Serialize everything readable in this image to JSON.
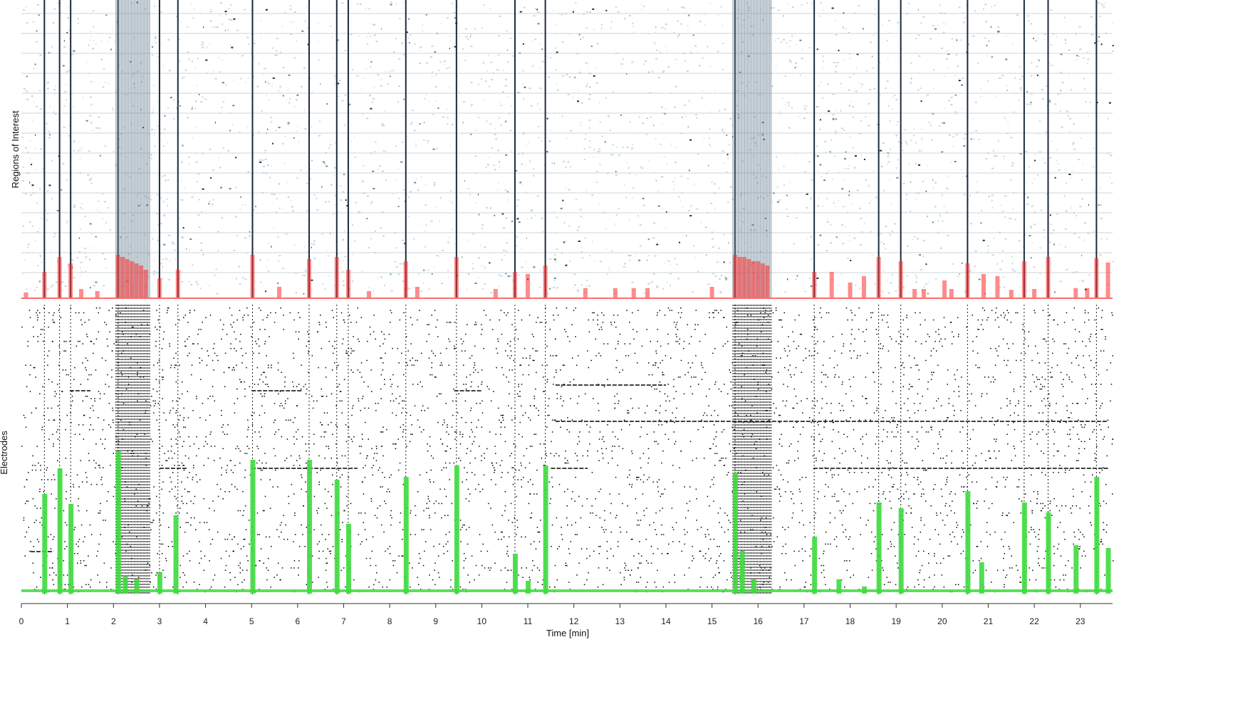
{
  "chart_data": [
    {
      "panel": "top",
      "type": "heatmap",
      "ylabel": "Regions of Interest",
      "xlim": [
        0,
        23.7
      ],
      "colormap": [
        "#ffffff",
        "#c9d6dd",
        "#6c8494",
        "#1c2b3a"
      ],
      "network_burst_times": [
        0.5,
        0.83,
        1.07,
        2.1,
        3.0,
        3.4,
        5.02,
        6.25,
        6.85,
        7.1,
        8.35,
        9.45,
        10.72,
        11.38,
        15.5,
        17.22,
        18.62,
        19.1,
        20.55,
        21.78,
        22.3,
        23.35
      ],
      "activity_bursts": {
        "color": "#ff2b2b",
        "times": [
          0.1,
          0.5,
          0.83,
          1.07,
          1.3,
          1.65,
          2.1,
          2.2,
          2.3,
          2.4,
          2.5,
          2.6,
          2.7,
          3.0,
          3.4,
          5.02,
          5.6,
          6.25,
          6.85,
          7.1,
          7.55,
          8.35,
          8.6,
          9.45,
          10.3,
          10.72,
          11.0,
          11.38,
          12.25,
          12.9,
          13.3,
          13.6,
          15.0,
          15.5,
          15.6,
          15.7,
          15.8,
          15.9,
          16.0,
          16.1,
          16.2,
          17.22,
          17.6,
          18.0,
          18.3,
          18.62,
          19.1,
          19.4,
          19.6,
          20.05,
          20.2,
          20.55,
          20.9,
          21.2,
          21.5,
          21.78,
          22.0,
          22.3,
          22.9,
          23.15,
          23.35,
          23.6
        ],
        "values": [
          0.12,
          0.6,
          0.95,
          0.8,
          0.2,
          0.15,
          1.0,
          0.95,
          0.9,
          0.85,
          0.8,
          0.75,
          0.65,
          0.45,
          0.65,
          1.0,
          0.25,
          0.9,
          0.95,
          0.65,
          0.15,
          0.85,
          0.25,
          0.95,
          0.2,
          0.6,
          0.55,
          0.75,
          0.22,
          0.22,
          0.22,
          0.22,
          0.25,
          1.0,
          0.95,
          0.95,
          0.9,
          0.85,
          0.85,
          0.8,
          0.75,
          0.6,
          0.6,
          0.35,
          0.5,
          0.95,
          0.85,
          0.2,
          0.2,
          0.4,
          0.2,
          0.8,
          0.55,
          0.5,
          0.18,
          0.85,
          0.2,
          0.95,
          0.22,
          0.22,
          0.92,
          0.82
        ]
      }
    },
    {
      "panel": "bottom",
      "type": "scatter",
      "ylabel": "Electrodes",
      "xlabel": "Time [min]",
      "xlim": [
        0,
        23.7
      ],
      "xticks": [
        0,
        1,
        2,
        3,
        4,
        5,
        6,
        7,
        8,
        9,
        10,
        11,
        12,
        13,
        14,
        15,
        16,
        17,
        18,
        19,
        20,
        21,
        22,
        23
      ],
      "spike_color": "#000000",
      "population_rate": {
        "color": "#3ddc3d",
        "baseline": 0.02,
        "peaks": [
          {
            "t": 0.5,
            "v": 0.7
          },
          {
            "t": 0.83,
            "v": 0.88
          },
          {
            "t": 1.07,
            "v": 0.63
          },
          {
            "t": 2.1,
            "v": 1.0
          },
          {
            "t": 2.25,
            "v": 0.12
          },
          {
            "t": 2.5,
            "v": 0.1
          },
          {
            "t": 3.0,
            "v": 0.15
          },
          {
            "t": 3.35,
            "v": 0.55
          },
          {
            "t": 5.02,
            "v": 0.94
          },
          {
            "t": 6.25,
            "v": 0.94
          },
          {
            "t": 6.85,
            "v": 0.8
          },
          {
            "t": 7.1,
            "v": 0.49
          },
          {
            "t": 8.35,
            "v": 0.82
          },
          {
            "t": 9.45,
            "v": 0.9
          },
          {
            "t": 10.72,
            "v": 0.28
          },
          {
            "t": 11.0,
            "v": 0.09
          },
          {
            "t": 11.38,
            "v": 0.9
          },
          {
            "t": 15.5,
            "v": 0.85
          },
          {
            "t": 15.65,
            "v": 0.3
          },
          {
            "t": 15.9,
            "v": 0.1
          },
          {
            "t": 17.22,
            "v": 0.4
          },
          {
            "t": 17.75,
            "v": 0.1
          },
          {
            "t": 18.3,
            "v": 0.05
          },
          {
            "t": 18.62,
            "v": 0.64
          },
          {
            "t": 19.1,
            "v": 0.6
          },
          {
            "t": 20.55,
            "v": 0.72
          },
          {
            "t": 20.85,
            "v": 0.22
          },
          {
            "t": 21.78,
            "v": 0.64
          },
          {
            "t": 22.3,
            "v": 0.57
          },
          {
            "t": 22.9,
            "v": 0.34
          },
          {
            "t": 23.35,
            "v": 0.82
          },
          {
            "t": 23.6,
            "v": 0.32
          }
        ]
      }
    }
  ]
}
